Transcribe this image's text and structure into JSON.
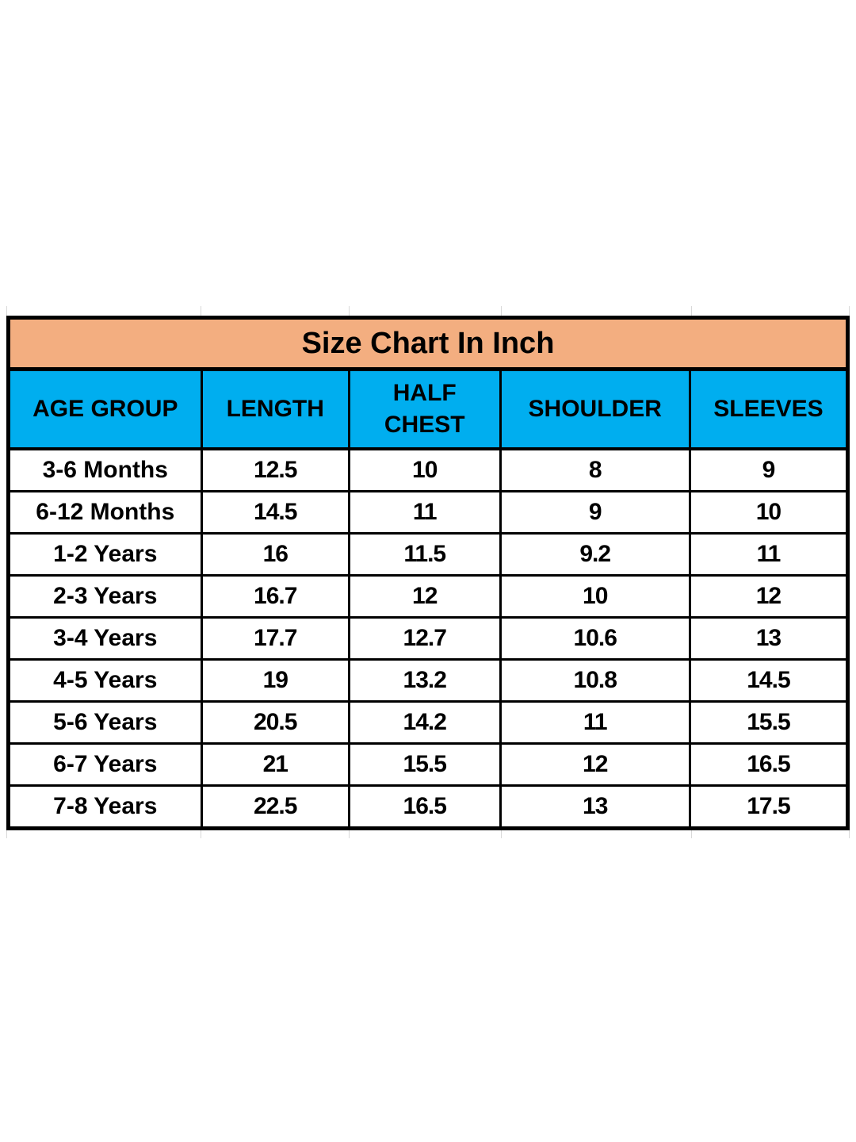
{
  "title": "Size Chart In Inch",
  "colors": {
    "page_bg": "#FFFFFF",
    "title_bg": "#F3AE80",
    "header_bg": "#00AEEF",
    "border": "#000000",
    "text": "#000000"
  },
  "chart_data": {
    "type": "table",
    "title": "Size Chart In Inch",
    "columns": [
      "AGE GROUP",
      "LENGTH",
      "HALF CHEST",
      "SHOULDER",
      "SLEEVES"
    ],
    "rows": [
      [
        "3-6 Months",
        "12.5",
        "10",
        "8",
        "9"
      ],
      [
        "6-12 Months",
        "14.5",
        "11",
        "9",
        "10"
      ],
      [
        "1-2 Years",
        "16",
        "11.5",
        "9.2",
        "11"
      ],
      [
        "2-3 Years",
        "16.7",
        "12",
        "10",
        "12"
      ],
      [
        "3-4 Years",
        "17.7",
        "12.7",
        "10.6",
        "13"
      ],
      [
        "4-5 Years",
        "19",
        "13.2",
        "10.8",
        "14.5"
      ],
      [
        "5-6 Years",
        "20.5",
        "14.2",
        "11",
        "15.5"
      ],
      [
        "6-7 Years",
        "21",
        "15.5",
        "12",
        "16.5"
      ],
      [
        "7-8 Years",
        "22.5",
        "16.5",
        "13",
        "17.5"
      ]
    ]
  }
}
